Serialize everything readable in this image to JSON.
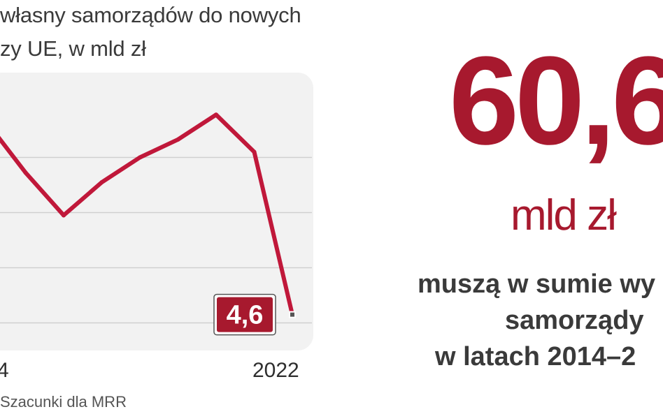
{
  "chart_data": {
    "type": "line",
    "title_lines": [
      "własny samorządów do nowych",
      "zy UE, w mld zł"
    ],
    "x_tick_labels": [
      "4",
      "2022"
    ],
    "x": [
      2014,
      2015,
      2016,
      2017,
      2018,
      2019,
      2020,
      2021,
      2022
    ],
    "values": [
      18.5,
      14.9,
      11.8,
      14.2,
      16.0,
      17.3,
      19.1,
      16.4,
      4.6
    ],
    "ylim": [
      2,
      22
    ],
    "grid": true,
    "last_value_label": "4,6",
    "line_color": "#c0183a",
    "label_bg_color": "#a7192e",
    "source": "Szacunki dla MRR"
  },
  "callout": {
    "value": "60,6",
    "unit": "mld zł",
    "lines": [
      "muszą w sumie wy",
      "samorządy",
      "w latach 2014–2"
    ],
    "color": "#a7192e"
  }
}
